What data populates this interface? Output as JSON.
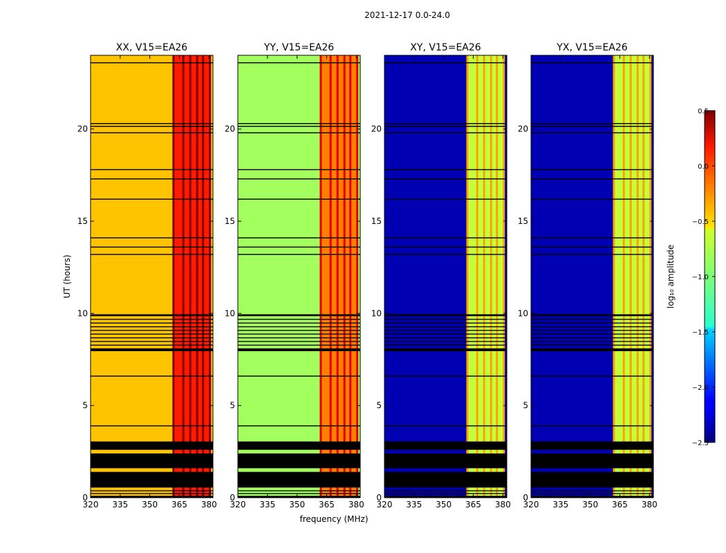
{
  "figure": {
    "suptitle": "2021-12-17 0.0-24.0"
  },
  "chart_data": {
    "type": "heatmap",
    "xlabel": "frequency (MHz)",
    "ylabel": "UT (hours)",
    "xlim": [
      320,
      382
    ],
    "ylim": [
      0,
      24
    ],
    "x_ticks": [
      320,
      335,
      350,
      365,
      380
    ],
    "y_ticks": [
      0,
      5,
      10,
      15,
      20
    ],
    "colorbar": {
      "label": "log₁₀ amplitude",
      "range": [
        -2.5,
        0.5
      ],
      "ticks": [
        0.5,
        0.0,
        -0.5,
        -1.0,
        -1.5,
        -2.0,
        -2.5
      ],
      "tick_labels": [
        "0.5",
        "0.0",
        "−0.5",
        "−1.0",
        "−1.5",
        "−2.0",
        "−2.5"
      ]
    },
    "band_edges_mhz": [
      362.0,
      367.0,
      370.5,
      374.0,
      377.0,
      380.5
    ],
    "flagged_intervals_hours": [
      [
        0.0,
        0.1
      ],
      [
        0.2,
        0.25
      ],
      [
        0.35,
        0.4
      ],
      [
        0.55,
        1.4
      ],
      [
        1.6,
        2.4
      ],
      [
        2.6,
        3.05
      ],
      [
        7.95,
        8.1
      ],
      [
        8.25,
        8.3
      ],
      [
        8.45,
        8.5
      ],
      [
        8.65,
        8.7
      ],
      [
        8.85,
        8.9
      ],
      [
        9.05,
        9.1
      ],
      [
        9.25,
        9.3
      ],
      [
        9.45,
        9.5
      ],
      [
        9.65,
        9.7
      ],
      [
        9.85,
        9.95
      ]
    ],
    "thin_lines_hours": [
      3.9,
      6.6,
      13.2,
      13.6,
      14.1,
      16.2,
      17.3,
      17.8,
      19.8,
      20.15,
      20.3,
      23.6
    ],
    "panels": [
      {
        "title": "XX, V15=EA26",
        "baseline_log_amp": -0.45,
        "band_log_amp": 0.05,
        "show_ylabel": true
      },
      {
        "title": "YY, V15=EA26",
        "baseline_log_amp": -0.9,
        "band_log_amp": -0.25,
        "show_ylabel": false
      },
      {
        "title": "XY, V15=EA26",
        "baseline_log_amp": -2.35,
        "band_log_amp": -0.8,
        "show_ylabel": false
      },
      {
        "title": "YX, V15=EA26",
        "baseline_log_amp": -2.35,
        "band_log_amp": -0.8,
        "show_ylabel": false
      }
    ]
  }
}
